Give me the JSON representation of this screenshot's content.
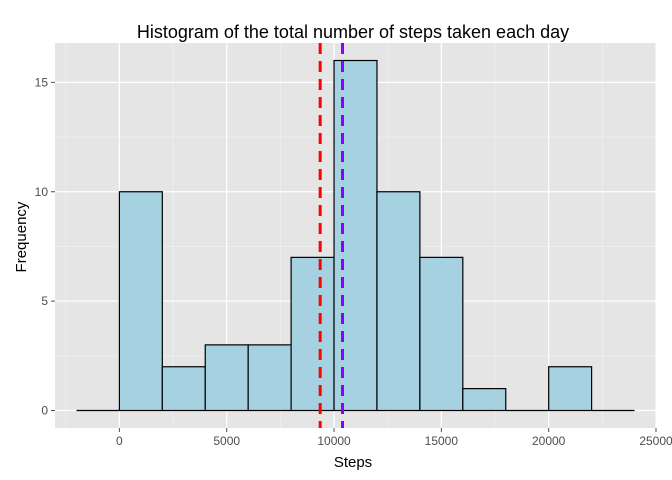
{
  "chart_data": {
    "type": "bar",
    "title": "Histogram of the total number of steps taken each day",
    "xlabel": "Steps",
    "ylabel": "Frequency",
    "xlim": [
      -3000,
      25000
    ],
    "ylim": [
      -0.8,
      16.8
    ],
    "x_ticks": [
      0,
      5000,
      10000,
      15000,
      20000,
      25000
    ],
    "y_ticks": [
      0,
      5,
      10,
      15
    ],
    "bins": [
      {
        "start": -2000,
        "end": 0,
        "count": 0
      },
      {
        "start": 0,
        "end": 2000,
        "count": 10
      },
      {
        "start": 2000,
        "end": 4000,
        "count": 2
      },
      {
        "start": 4000,
        "end": 6000,
        "count": 3
      },
      {
        "start": 6000,
        "end": 8000,
        "count": 3
      },
      {
        "start": 8000,
        "end": 10000,
        "count": 7
      },
      {
        "start": 10000,
        "end": 12000,
        "count": 16
      },
      {
        "start": 12000,
        "end": 14000,
        "count": 10
      },
      {
        "start": 14000,
        "end": 16000,
        "count": 7
      },
      {
        "start": 16000,
        "end": 18000,
        "count": 1
      },
      {
        "start": 18000,
        "end": 20000,
        "count": 0
      },
      {
        "start": 20000,
        "end": 22000,
        "count": 2
      },
      {
        "start": 22000,
        "end": 24000,
        "count": 0
      }
    ],
    "vlines": [
      {
        "x": 9354,
        "color": "#ff0000"
      },
      {
        "x": 10395,
        "color": "#8a00ff"
      }
    ],
    "colors": {
      "bar_fill": "#a6d1e1",
      "bar_stroke": "#000000",
      "panel_bg": "#e5e5e5",
      "grid_major": "#ffffff",
      "grid_minor": "#f2f2f2"
    },
    "grid": true,
    "legend": "none"
  }
}
